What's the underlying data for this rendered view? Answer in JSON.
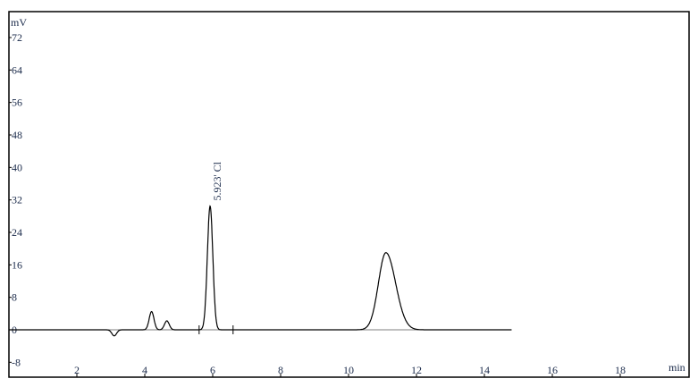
{
  "chart_data": {
    "type": "line",
    "ylabel": "mV",
    "xlabel": "min",
    "xlim": [
      0,
      19.5
    ],
    "ylim": [
      -9,
      78
    ],
    "yticks": [
      -8,
      0,
      8,
      16,
      24,
      32,
      40,
      48,
      56,
      64,
      72
    ],
    "xticks": [
      2,
      4,
      6,
      8,
      10,
      12,
      14,
      16,
      18
    ],
    "grid": false,
    "trace_end": 14.8,
    "peaks": [
      {
        "rt": 3.1,
        "height": -1.5,
        "width": 0.07
      },
      {
        "rt": 4.2,
        "height": 4.5,
        "width": 0.07
      },
      {
        "rt": 4.65,
        "height": 2.2,
        "width": 0.07
      },
      {
        "rt": 5.923,
        "height": 30.5,
        "width": 0.08
      },
      {
        "rt": 11.1,
        "height": 19,
        "width": 0.22
      }
    ],
    "integration_marks": [
      5.6,
      6.6
    ],
    "annotations": [
      {
        "x": 5.923,
        "y": 30.5,
        "text": "5.923' Cl"
      }
    ]
  }
}
